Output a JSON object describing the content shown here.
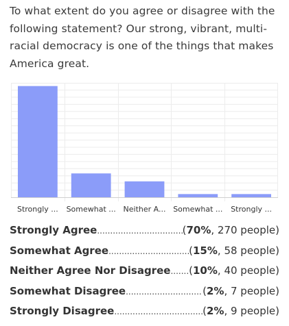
{
  "question": "To what extent do you agree or disagree with the following statement? Our strong, vibrant, multi-racial democracy is one of the things that makes America great.",
  "colors": {
    "bar": "#8b9cf9",
    "grid": "#ececec",
    "axis": "#cfcfcf",
    "text": "#333333"
  },
  "chart_data": {
    "type": "bar",
    "title": "",
    "xlabel": "",
    "ylabel": "",
    "categories": [
      "Strongly ...",
      "Somewhat ...",
      "Neither A...",
      "Somewhat ...",
      "Strongly ..."
    ],
    "values": [
      70,
      15,
      10,
      2,
      2
    ],
    "ylim": [
      0,
      72
    ],
    "grid": true,
    "legend": "none"
  },
  "results": [
    {
      "label": "Strongly Agree",
      "percent": "70%",
      "people": ", 270 people)"
    },
    {
      "label": "Somewhat Agree",
      "percent": "15%",
      "people": ", 58 people)"
    },
    {
      "label": "Neither Agree Nor Disagree",
      "percent": "10%",
      "people": ", 40 people)"
    },
    {
      "label": "Somewhat Disagree",
      "percent": "2%",
      "people": ", 7 people)"
    },
    {
      "label": "Strongly Disagree",
      "percent": "2%",
      "people": ", 9 people)"
    }
  ]
}
